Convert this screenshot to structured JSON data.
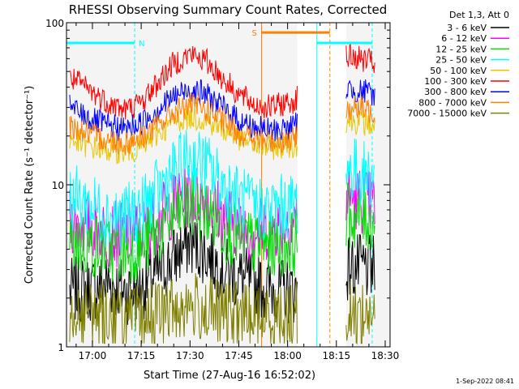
{
  "chart_data": {
    "type": "line",
    "title": "RHESSI Observing Summary Count Rates, Corrected",
    "xlabel": "Start Time (27-Aug-16 16:52:02)",
    "ylabel": "Corrected Count Rate (s⁻¹ detector⁻¹)",
    "yscale": "log",
    "ylim": [
      1,
      100
    ],
    "xlim": [
      "16:52:02",
      "18:31:30"
    ],
    "x_ticks": [
      "17:00",
      "17:15",
      "17:30",
      "17:45",
      "18:00",
      "18:15",
      "18:30"
    ],
    "y_ticks": [
      "1",
      "10",
      "100"
    ],
    "background": "#f4f4f4",
    "legend_title": "Det 1,3, Att 0",
    "legend_position": "top-right",
    "data_gap": [
      "18:03",
      "18:18"
    ],
    "series": [
      {
        "name": "3 - 6 keV",
        "color": "#000000",
        "x": [
          "16:53",
          "17:00",
          "17:05",
          "17:10",
          "17:15",
          "17:20",
          "17:25",
          "17:30",
          "17:35",
          "17:40",
          "17:45",
          "17:50",
          "17:55",
          "18:02",
          "18:18",
          "18:22",
          "18:27"
        ],
        "values": [
          2.2,
          2.3,
          2.5,
          2.2,
          2.3,
          2.8,
          3.5,
          4.5,
          3.8,
          3,
          2.7,
          2.4,
          2.3,
          2.2,
          3.1,
          3.1,
          3
        ]
      },
      {
        "name": "6 - 12 keV",
        "color": "#ff00ff",
        "x": [
          "16:53",
          "17:00",
          "17:05",
          "17:10",
          "17:15",
          "17:20",
          "17:25",
          "17:30",
          "17:35",
          "17:40",
          "17:45",
          "17:50",
          "17:55",
          "18:02",
          "18:18",
          "18:22",
          "18:27"
        ],
        "values": [
          6,
          5.5,
          5,
          4.9,
          5.2,
          6,
          7.5,
          8.8,
          8,
          6.5,
          5.5,
          5.2,
          5.5,
          6,
          8.5,
          8.2,
          7.5
        ]
      },
      {
        "name": "12 - 25 keV",
        "color": "#00dd00",
        "x": [
          "16:53",
          "17:00",
          "17:05",
          "17:10",
          "17:15",
          "17:20",
          "17:25",
          "17:30",
          "17:35",
          "17:40",
          "17:45",
          "17:50",
          "17:55",
          "18:02",
          "18:18",
          "18:22",
          "18:27"
        ],
        "values": [
          4.5,
          4.2,
          4,
          3.9,
          4.1,
          5,
          6.3,
          7.5,
          6.8,
          5.5,
          4.7,
          4.3,
          4.3,
          4.4,
          6.5,
          6.3,
          6
        ]
      },
      {
        "name": "25 - 50 keV",
        "color": "#00ffff",
        "x": [
          "16:53",
          "17:00",
          "17:05",
          "17:10",
          "17:15",
          "17:20",
          "17:25",
          "17:30",
          "17:35",
          "17:40",
          "17:45",
          "17:50",
          "17:55",
          "18:02",
          "18:18",
          "18:22",
          "18:27"
        ],
        "values": [
          8.5,
          7.3,
          6.5,
          6.3,
          6.9,
          9,
          12,
          14.5,
          13,
          10,
          8.2,
          7.2,
          7.1,
          7.5,
          12.5,
          12,
          11
        ]
      },
      {
        "name": "50 - 100 keV",
        "color": "#e8c600",
        "x": [
          "16:53",
          "17:00",
          "17:05",
          "17:10",
          "17:15",
          "17:20",
          "17:25",
          "17:30",
          "17:35",
          "17:40",
          "17:45",
          "17:50",
          "17:55",
          "18:02",
          "18:18",
          "18:22",
          "18:27"
        ],
        "values": [
          19,
          17,
          16.5,
          16,
          17,
          20.5,
          24.5,
          26.5,
          25,
          22,
          19.5,
          17.5,
          17,
          17.5,
          25,
          24.5,
          23
        ]
      },
      {
        "name": "100 - 300 keV",
        "color": "#ff0000",
        "x": [
          "16:53",
          "17:00",
          "17:05",
          "17:10",
          "17:15",
          "17:20",
          "17:25",
          "17:30",
          "17:35",
          "17:40",
          "17:45",
          "17:50",
          "17:55",
          "18:02",
          "18:18",
          "18:22",
          "18:27"
        ],
        "values": [
          46,
          37,
          32,
          29,
          32,
          42,
          56,
          64,
          58,
          45,
          36,
          31,
          30,
          33,
          62,
          60,
          56
        ]
      },
      {
        "name": "300 - 800 keV",
        "color": "#0000ff",
        "x": [
          "16:53",
          "17:00",
          "17:05",
          "17:10",
          "17:15",
          "17:20",
          "17:25",
          "17:30",
          "17:35",
          "17:40",
          "17:45",
          "17:50",
          "17:55",
          "18:02",
          "18:18",
          "18:22",
          "18:27"
        ],
        "values": [
          30,
          25,
          23,
          22,
          24,
          29,
          35,
          39,
          36,
          30,
          25,
          22.5,
          21.5,
          23,
          39,
          38,
          36
        ]
      },
      {
        "name": "800 - 7000 keV",
        "color": "#ff8000",
        "x": [
          "16:53",
          "17:00",
          "17:05",
          "17:10",
          "17:15",
          "17:20",
          "17:25",
          "17:30",
          "17:35",
          "17:40",
          "17:45",
          "17:50",
          "17:55",
          "18:02",
          "18:18",
          "18:22",
          "18:27"
        ],
        "values": [
          23,
          20,
          19,
          18,
          19.5,
          23,
          28,
          31,
          29,
          24.5,
          21,
          19,
          18.5,
          19,
          30,
          29.5,
          28
        ]
      },
      {
        "name": "7000 - 15000 keV",
        "color": "#808000",
        "x": [
          "16:53",
          "17:00",
          "17:05",
          "17:10",
          "17:15",
          "17:20",
          "17:25",
          "17:30",
          "17:35",
          "17:40",
          "17:45",
          "17:50",
          "17:55",
          "18:02",
          "18:18",
          "18:22",
          "18:27"
        ],
        "values": [
          1.7,
          1.6,
          1.6,
          1.5,
          1.5,
          1.6,
          1.7,
          1.8,
          1.7,
          1.6,
          1.6,
          1.5,
          1.5,
          1.6,
          1.6,
          1.6,
          1.6
        ]
      }
    ],
    "annotations": [
      {
        "label": "N",
        "color": "#00ffff",
        "bar": [
          "16:52",
          "17:13"
        ],
        "y": 75,
        "style": "dashed",
        "markers": [
          "17:13"
        ]
      },
      {
        "label": "S",
        "color": "#ff8000",
        "bar": [
          "17:52",
          "18:13"
        ],
        "y": 87,
        "style": "solid",
        "markers": [
          "17:52"
        ]
      },
      {
        "label": "",
        "color": "#ff8000",
        "style": "dashed",
        "markers": [
          "18:13"
        ]
      },
      {
        "label": "",
        "color": "#00ffff",
        "bar": [
          "18:09",
          "18:26"
        ],
        "y": 75,
        "style": "solid",
        "markers": [
          "18:09"
        ]
      },
      {
        "label": "",
        "color": "#00ffff",
        "style": "dashed",
        "markers": [
          "18:26"
        ]
      }
    ],
    "footer_date": "1-Sep-2022 08:41"
  }
}
